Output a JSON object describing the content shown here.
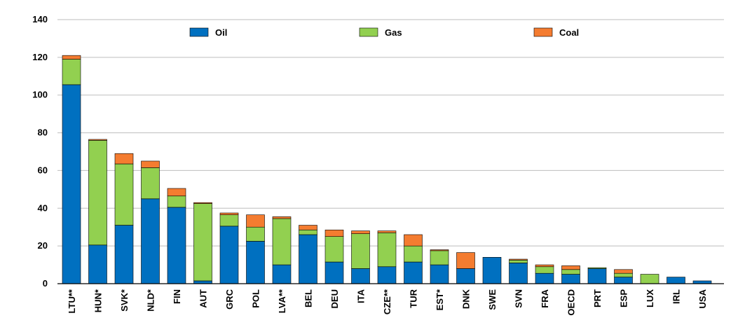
{
  "chart_data": {
    "type": "bar",
    "stacked": true,
    "categories": [
      "LTU**",
      "HUN*",
      "SVK*",
      "NLD*",
      "FIN",
      "AUT",
      "GRC",
      "POL",
      "LVA**",
      "BEL",
      "DEU",
      "ITA",
      "CZE**",
      "TUR",
      "EST*",
      "DNK",
      "SWE",
      "SVN",
      "FRA",
      "OECD",
      "PRT",
      "ESP",
      "LUX",
      "IRL",
      "USA"
    ],
    "series": [
      {
        "name": "Oil",
        "color": "#0070C0",
        "values": [
          105.5,
          20.5,
          31,
          45,
          40.5,
          1.5,
          30.5,
          22.5,
          10,
          26,
          11.5,
          8,
          9,
          11.5,
          10,
          8,
          14,
          11,
          5.5,
          5,
          8,
          3.5,
          0,
          3.5,
          1.5
        ]
      },
      {
        "name": "Gas",
        "color": "#92D050",
        "values": [
          13.5,
          55.5,
          32.5,
          16.5,
          6,
          41,
          6,
          7.5,
          24.5,
          2.5,
          13.5,
          18.5,
          18,
          8.5,
          7.5,
          0,
          0,
          1.5,
          3.5,
          2.5,
          0.5,
          2,
          5,
          0,
          0
        ]
      },
      {
        "name": "Coal",
        "color": "#F47C30",
        "values": [
          2,
          0.5,
          5.5,
          3.5,
          4,
          0.5,
          1,
          6.5,
          1,
          2.5,
          3.5,
          1.5,
          1,
          6,
          0.5,
          8.5,
          0,
          0.5,
          1,
          2,
          0,
          2,
          0,
          0,
          0
        ]
      }
    ],
    "ylim": [
      0,
      140
    ],
    "yticks": [
      0,
      20,
      40,
      60,
      80,
      100,
      120,
      140
    ],
    "grid": true,
    "legend_position": "top"
  }
}
